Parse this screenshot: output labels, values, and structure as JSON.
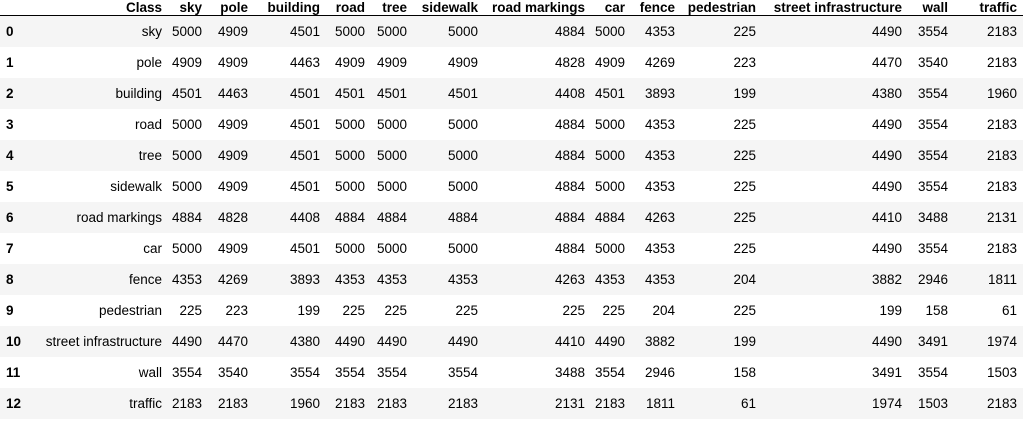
{
  "table": {
    "index_header": "",
    "columns": [
      "Class",
      "sky",
      "pole",
      "building",
      "road",
      "tree",
      "sidewalk",
      "road markings",
      "car",
      "fence",
      "pedestrian",
      "street infrastructure",
      "wall",
      "traffic"
    ],
    "rows": [
      {
        "index": "0",
        "cells": [
          "sky",
          "5000",
          "4909",
          "4501",
          "5000",
          "5000",
          "5000",
          "4884",
          "5000",
          "4353",
          "225",
          "4490",
          "3554",
          "2183"
        ]
      },
      {
        "index": "1",
        "cells": [
          "pole",
          "4909",
          "4909",
          "4463",
          "4909",
          "4909",
          "4909",
          "4828",
          "4909",
          "4269",
          "223",
          "4470",
          "3540",
          "2183"
        ]
      },
      {
        "index": "2",
        "cells": [
          "building",
          "4501",
          "4463",
          "4501",
          "4501",
          "4501",
          "4501",
          "4408",
          "4501",
          "3893",
          "199",
          "4380",
          "3554",
          "1960"
        ]
      },
      {
        "index": "3",
        "cells": [
          "road",
          "5000",
          "4909",
          "4501",
          "5000",
          "5000",
          "5000",
          "4884",
          "5000",
          "4353",
          "225",
          "4490",
          "3554",
          "2183"
        ]
      },
      {
        "index": "4",
        "cells": [
          "tree",
          "5000",
          "4909",
          "4501",
          "5000",
          "5000",
          "5000",
          "4884",
          "5000",
          "4353",
          "225",
          "4490",
          "3554",
          "2183"
        ]
      },
      {
        "index": "5",
        "cells": [
          "sidewalk",
          "5000",
          "4909",
          "4501",
          "5000",
          "5000",
          "5000",
          "4884",
          "5000",
          "4353",
          "225",
          "4490",
          "3554",
          "2183"
        ]
      },
      {
        "index": "6",
        "cells": [
          "road markings",
          "4884",
          "4828",
          "4408",
          "4884",
          "4884",
          "4884",
          "4884",
          "4884",
          "4263",
          "225",
          "4410",
          "3488",
          "2131"
        ]
      },
      {
        "index": "7",
        "cells": [
          "car",
          "5000",
          "4909",
          "4501",
          "5000",
          "5000",
          "5000",
          "4884",
          "5000",
          "4353",
          "225",
          "4490",
          "3554",
          "2183"
        ]
      },
      {
        "index": "8",
        "cells": [
          "fence",
          "4353",
          "4269",
          "3893",
          "4353",
          "4353",
          "4353",
          "4263",
          "4353",
          "4353",
          "204",
          "3882",
          "2946",
          "1811"
        ]
      },
      {
        "index": "9",
        "cells": [
          "pedestrian",
          "225",
          "223",
          "199",
          "225",
          "225",
          "225",
          "225",
          "225",
          "204",
          "225",
          "199",
          "158",
          "61"
        ]
      },
      {
        "index": "10",
        "cells": [
          "street infrastructure",
          "4490",
          "4470",
          "4380",
          "4490",
          "4490",
          "4490",
          "4410",
          "4490",
          "3882",
          "199",
          "4490",
          "3491",
          "1974"
        ]
      },
      {
        "index": "11",
        "cells": [
          "wall",
          "3554",
          "3540",
          "3554",
          "3554",
          "3554",
          "3554",
          "3488",
          "3554",
          "2946",
          "158",
          "3491",
          "3554",
          "1503"
        ]
      },
      {
        "index": "12",
        "cells": [
          "traffic",
          "2183",
          "2183",
          "1960",
          "2183",
          "2183",
          "2183",
          "2131",
          "2183",
          "1811",
          "61",
          "1974",
          "1503",
          "2183"
        ]
      }
    ]
  }
}
